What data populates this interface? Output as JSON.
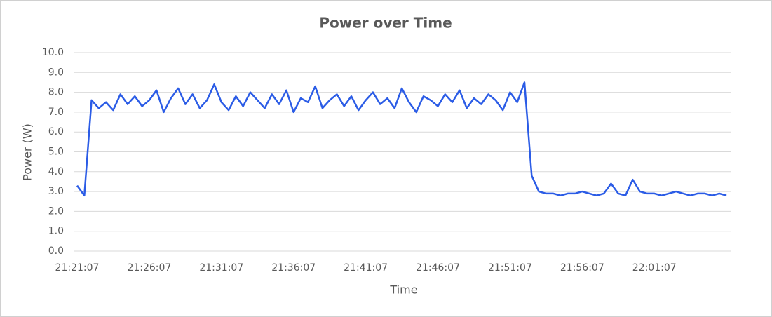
{
  "chart_data": {
    "type": "line",
    "title": "Power over Time",
    "x_label": "Time",
    "y_label": "Power (W)",
    "categories": [
      "21:21:07",
      null,
      null,
      null,
      null,
      null,
      null,
      null,
      null,
      null,
      "21:26:07",
      null,
      null,
      null,
      null,
      null,
      null,
      null,
      null,
      null,
      "21:31:07",
      null,
      null,
      null,
      null,
      null,
      null,
      null,
      null,
      null,
      "21:36:07",
      null,
      null,
      null,
      null,
      null,
      null,
      null,
      null,
      null,
      "21:41:07",
      null,
      null,
      null,
      null,
      null,
      null,
      null,
      null,
      null,
      "21:46:07",
      null,
      null,
      null,
      null,
      null,
      null,
      null,
      null,
      null,
      "21:51:07",
      null,
      null,
      null,
      null,
      null,
      null,
      null,
      null,
      null,
      "21:56:07",
      null,
      null,
      null,
      null,
      null,
      null,
      null,
      null,
      null,
      "22:01:07",
      null,
      null,
      null,
      null,
      null,
      null,
      null,
      null,
      null,
      null
    ],
    "series": [
      {
        "color": "#2b5ce6",
        "values": [
          3.3,
          2.8,
          7.6,
          7.2,
          7.5,
          7.1,
          7.9,
          7.4,
          7.8,
          7.3,
          7.6,
          8.1,
          7.0,
          7.7,
          8.2,
          7.4,
          7.9,
          7.2,
          7.6,
          8.4,
          7.5,
          7.1,
          7.8,
          7.3,
          8.0,
          7.6,
          7.2,
          7.9,
          7.4,
          8.1,
          7.0,
          7.7,
          7.5,
          8.3,
          7.2,
          7.6,
          7.9,
          7.3,
          7.8,
          7.1,
          7.6,
          8.0,
          7.4,
          7.7,
          7.2,
          8.2,
          7.5,
          7.0,
          7.8,
          7.6,
          7.3,
          7.9,
          7.5,
          8.1,
          7.2,
          7.7,
          7.4,
          7.9,
          7.6,
          7.1,
          8.0,
          7.5,
          8.5,
          3.8,
          3.0,
          2.9,
          2.9,
          2.8,
          2.9,
          2.9,
          3.0,
          2.9,
          2.8,
          2.9,
          3.4,
          2.9,
          2.8,
          3.6,
          3.0,
          2.9,
          2.9,
          2.8,
          2.9,
          3.0,
          2.9,
          2.8,
          2.9,
          2.9,
          2.8,
          2.9,
          2.8
        ]
      }
    ],
    "ylim": [
      0,
      10
    ],
    "yticks": [
      {
        "value": 0,
        "label": "0.0"
      },
      {
        "value": 1,
        "label": "1.0"
      },
      {
        "value": 2,
        "label": "2.0"
      },
      {
        "value": 3,
        "label": "3.0"
      },
      {
        "value": 4,
        "label": "4.0"
      },
      {
        "value": 5,
        "label": "5.0"
      },
      {
        "value": 6,
        "label": "6.0"
      },
      {
        "value": 7,
        "label": "7.0"
      },
      {
        "value": 8,
        "label": "8.0"
      },
      {
        "value": 9,
        "label": "9.0"
      },
      {
        "value": 10,
        "label": "10.0"
      }
    ],
    "grid": true
  }
}
